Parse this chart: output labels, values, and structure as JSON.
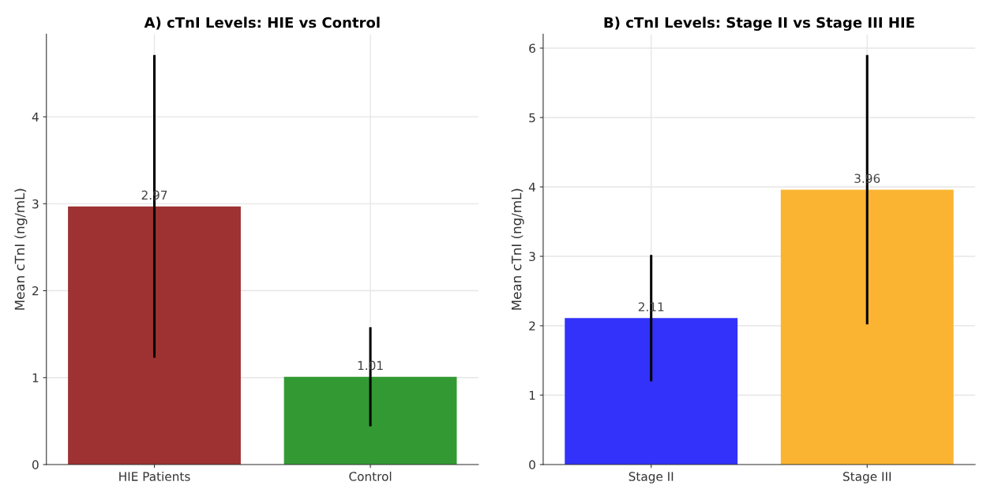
{
  "chart_data": [
    {
      "type": "bar",
      "title": "A) cTnI Levels: HIE vs Control",
      "ylabel": "Mean cTnI (ng/mL)",
      "categories": [
        "HIE Patients",
        "Control"
      ],
      "values": [
        2.97,
        1.01
      ],
      "colors": [
        "#9e3131",
        "#339a33"
      ],
      "errors": [
        1.74,
        0.57
      ],
      "data_labels": true,
      "ylim": [
        0,
        4.95
      ],
      "yticks": [
        0,
        1,
        2,
        3,
        4
      ],
      "grid": true
    },
    {
      "type": "bar",
      "title": "B) cTnI Levels: Stage II vs Stage III HIE",
      "ylabel": "Mean cTnI (ng/mL)",
      "categories": [
        "Stage II",
        "Stage III"
      ],
      "values": [
        2.11,
        3.96
      ],
      "colors": [
        "#3232fa",
        "#fab432"
      ],
      "errors": [
        0.91,
        1.94
      ],
      "data_labels": true,
      "ylim": [
        0,
        6.2
      ],
      "yticks": [
        0,
        1,
        2,
        3,
        4,
        5,
        6
      ],
      "grid": true
    }
  ]
}
